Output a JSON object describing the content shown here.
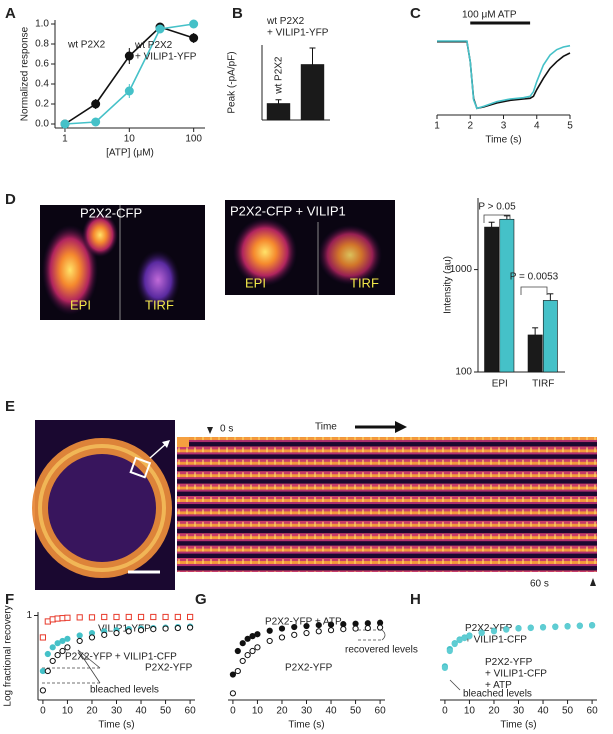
{
  "panel_labels": [
    "A",
    "B",
    "C",
    "D",
    "E",
    "F",
    "G",
    "H"
  ],
  "images": {
    "d_left": {
      "title": "P2X2-CFP",
      "left": "EPI",
      "right": "TIRF"
    },
    "d_right": {
      "title": "P2X2-CFP + VILIP1",
      "left": "EPI",
      "right": "TIRF"
    },
    "e": {
      "start": "0 s",
      "axis": "Time",
      "end": "60 s"
    }
  },
  "chart_data": [
    {
      "type": "line",
      "markers": true,
      "xlabel": "[ATP] (μM)",
      "ylabel": "Normalized response",
      "xscale": "log",
      "xlim": [
        0.7,
        150
      ],
      "xticks": [
        1,
        10,
        100
      ],
      "ylim": [
        -0.04,
        1.04
      ],
      "yticks": [
        {
          "value": 0,
          "label": "0.0"
        },
        0.2,
        0.4,
        0.6,
        0.8,
        {
          "value": 1,
          "label": "1.0"
        }
      ],
      "series": [
        {
          "name": "wt P2X2",
          "color": "#111111",
          "marker": "circle",
          "fill": true,
          "x": [
            1,
            3,
            10,
            30,
            100
          ],
          "values": [
            0,
            0.2,
            0.68,
            0.97,
            0.86
          ],
          "errors": [
            0.02,
            0.05,
            0.08,
            0.03,
            0.05
          ]
        },
        {
          "name": "wt P2X2 + VILIP1-YFP",
          "color": "#45c1c8",
          "marker": "circle",
          "fill": true,
          "x": [
            1,
            3,
            10,
            30,
            100
          ],
          "values": [
            0,
            0.02,
            0.33,
            0.95,
            1.0
          ],
          "errors": [
            0.01,
            0.02,
            0.07,
            0.03,
            0.02
          ]
        }
      ]
    },
    {
      "type": "bar",
      "ylabel": "Peak (-pA/pF)",
      "categories": [
        "wt P2X2",
        "wt P2X2 + VILIP1-YFP"
      ],
      "values": [
        110,
        370
      ],
      "errors": [
        25,
        110
      ],
      "color": "#1a1a1a",
      "ylim": [
        0,
        500
      ]
    },
    {
      "type": "line",
      "markers": false,
      "title": "100 μM ATP",
      "xlabel": "Time (s)",
      "xlim": [
        1,
        5
      ],
      "xticks": [
        1,
        2,
        3,
        4,
        5
      ],
      "ylim": [
        -1.1,
        0.1
      ],
      "atp_span": [
        2,
        3.8
      ],
      "x": [
        1,
        1.9,
        2.0,
        2.1,
        2.2,
        2.4,
        2.8,
        3.2,
        3.6,
        3.8,
        3.9,
        4.0,
        4.2,
        4.4,
        4.6,
        4.8,
        5
      ],
      "series": [
        {
          "color": "#111111",
          "values": [
            0,
            0,
            -0.3,
            -0.85,
            -1,
            -0.98,
            -0.92,
            -0.88,
            -0.86,
            -0.85,
            -0.82,
            -0.72,
            -0.55,
            -0.4,
            -0.3,
            -0.22,
            -0.17
          ]
        },
        {
          "color": "#45c1c8",
          "values": [
            0.01,
            0.01,
            -0.3,
            -0.87,
            -1.0,
            -0.97,
            -0.9,
            -0.86,
            -0.84,
            -0.82,
            -0.75,
            -0.6,
            -0.35,
            -0.2,
            -0.12,
            -0.08,
            -0.06
          ]
        }
      ]
    },
    {
      "type": "bar",
      "ylabel": "Intensity (au)",
      "yscale": "log",
      "ylim": [
        100,
        5000
      ],
      "yticks": [
        100,
        1000
      ],
      "categories": [
        "EPI",
        "TIRF"
      ],
      "annotations": [
        "P > 0.05",
        "P = 0.0053"
      ],
      "series": [
        {
          "color": "#1a1a1a",
          "values": [
            2600,
            230
          ],
          "errors": [
            300,
            40
          ]
        },
        {
          "color": "#45c1c8",
          "values": [
            3100,
            500
          ],
          "errors": [
            250,
            80
          ]
        }
      ]
    },
    {
      "type": "scatter",
      "xlabel": "Time (s)",
      "ylabel": "Log fractional recovery",
      "yscale": "log",
      "xlim": [
        -2,
        62
      ],
      "ylim": [
        0.1,
        1.1
      ],
      "xticks": [
        0,
        10,
        20,
        30,
        40,
        50,
        60
      ],
      "yticks": [
        1
      ],
      "annotations": [
        "bleached levels"
      ],
      "x": [
        0,
        2,
        4,
        6,
        8,
        10,
        15,
        20,
        25,
        30,
        35,
        40,
        45,
        50,
        55,
        60
      ],
      "series": [
        {
          "name": "VILIP1-YFP",
          "color": "#e8392a",
          "marker": "square",
          "fill": false,
          "values": [
            0.55,
            0.85,
            0.9,
            0.92,
            0.93,
            0.94,
            0.95,
            0.95,
            0.96,
            0.96,
            0.96,
            0.96,
            0.96,
            0.96,
            0.96,
            0.96
          ]
        },
        {
          "name": "P2X2-YFP + VILIP1-CFP",
          "color": "#45c1c8",
          "marker": "circle",
          "fill": true,
          "values": [
            0.22,
            0.35,
            0.42,
            0.47,
            0.5,
            0.53,
            0.58,
            0.62,
            0.65,
            0.67,
            0.69,
            0.7,
            0.71,
            0.72,
            0.73,
            0.74
          ]
        },
        {
          "name": "P2X2-YFP",
          "color": "#111111",
          "marker": "circle",
          "fill": false,
          "values": [
            0.13,
            0.22,
            0.29,
            0.34,
            0.38,
            0.42,
            0.5,
            0.55,
            0.59,
            0.62,
            0.65,
            0.67,
            0.69,
            0.7,
            0.71,
            0.72
          ]
        }
      ]
    },
    {
      "type": "scatter",
      "xlabel": "Time (s)",
      "yscale": "log",
      "xlim": [
        -2,
        62
      ],
      "ylim": [
        0.1,
        1.1
      ],
      "xticks": [
        0,
        10,
        20,
        30,
        40,
        50,
        60
      ],
      "annotations": [
        "recovered levels"
      ],
      "x": [
        0,
        2,
        4,
        6,
        8,
        10,
        15,
        20,
        25,
        30,
        35,
        40,
        45,
        50,
        55,
        60
      ],
      "series": [
        {
          "name": "P2X2-YFP + ATP",
          "color": "#111111",
          "marker": "circle",
          "fill": true,
          "values": [
            0.2,
            0.38,
            0.47,
            0.53,
            0.57,
            0.6,
            0.66,
            0.7,
            0.73,
            0.75,
            0.77,
            0.78,
            0.79,
            0.8,
            0.81,
            0.82
          ]
        },
        {
          "name": "P2X2-YFP",
          "color": "#111111",
          "marker": "circle",
          "fill": false,
          "values": [
            0.12,
            0.22,
            0.29,
            0.34,
            0.38,
            0.42,
            0.5,
            0.55,
            0.59,
            0.62,
            0.65,
            0.67,
            0.69,
            0.7,
            0.71,
            0.72
          ]
        }
      ]
    },
    {
      "type": "scatter",
      "xlabel": "Time (s)",
      "yscale": "log",
      "xlim": [
        -2,
        62
      ],
      "ylim": [
        0.1,
        1.1
      ],
      "xticks": [
        0,
        10,
        20,
        30,
        40,
        50,
        60
      ],
      "annotations": [
        "bleached levels"
      ],
      "x": [
        0,
        2,
        4,
        6,
        8,
        10,
        15,
        20,
        25,
        30,
        35,
        40,
        45,
        50,
        55,
        60
      ],
      "series": [
        {
          "name": "P2X2-YFP + VILIP1-CFP",
          "color": "#45c1c8",
          "marker": "circle",
          "fill": true,
          "values": [
            0.25,
            0.4,
            0.47,
            0.52,
            0.55,
            0.58,
            0.63,
            0.66,
            0.69,
            0.71,
            0.72,
            0.73,
            0.74,
            0.75,
            0.76,
            0.77
          ]
        },
        {
          "name": "P2X2-YFP + VILIP1-CFP + ATP",
          "color": "#5fcdd3",
          "marker": "circle",
          "fill": true,
          "values": [
            0.24,
            0.38,
            0.46,
            0.51,
            0.54,
            0.57,
            0.62,
            0.65,
            0.68,
            0.7,
            0.71,
            0.72,
            0.73,
            0.74,
            0.75,
            0.76
          ]
        }
      ]
    }
  ]
}
